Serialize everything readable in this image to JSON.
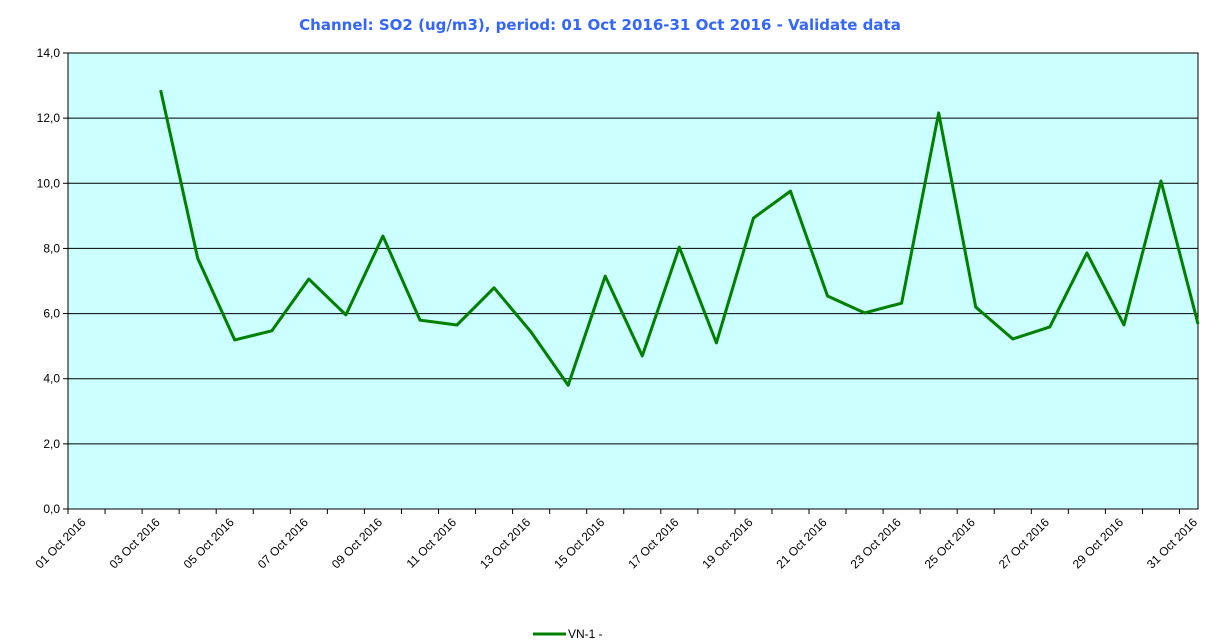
{
  "chart_data": {
    "type": "line",
    "title": "Channel: SO2 (ug/m3), period: 01 Oct 2016-31 Oct 2016 - Validate data",
    "categories": [
      "01 Oct 2016",
      null,
      "03 Oct 2016",
      null,
      "05 Oct 2016",
      null,
      "07 Oct 2016",
      null,
      "09 Oct 2016",
      null,
      "11 Oct 2016",
      null,
      "13 Oct 2016",
      null,
      "15 Oct 2016",
      null,
      "17 Oct 2016",
      null,
      "19 Oct 2016",
      null,
      "21 Oct 2016",
      null,
      "23 Oct 2016",
      null,
      "25 Oct 2016",
      null,
      "27 Oct 2016",
      null,
      "29 Oct 2016",
      null,
      "31 Oct 2016"
    ],
    "series": [
      {
        "name": "VN-1 -",
        "color": "#008000",
        "values": [
          null,
          null,
          12.86,
          7.7,
          5.19,
          5.47,
          7.06,
          5.96,
          8.38,
          5.8,
          5.65,
          6.79,
          5.43,
          3.8,
          7.15,
          4.7,
          8.04,
          5.1,
          8.93,
          9.76,
          6.54,
          6.02,
          6.32,
          12.16,
          6.2,
          5.22,
          5.59,
          7.86,
          5.65,
          10.07,
          5.68
        ]
      }
    ],
    "ylim": [
      0,
      14
    ],
    "yticks": [
      {
        "value": 0,
        "label": "0,0"
      },
      {
        "value": 2,
        "label": "2,0"
      },
      {
        "value": 4,
        "label": "4,0"
      },
      {
        "value": 6,
        "label": "6,0"
      },
      {
        "value": 8,
        "label": "8,0"
      },
      {
        "value": 10,
        "label": "10,0"
      },
      {
        "value": 12,
        "label": "12,0"
      },
      {
        "value": 14,
        "label": "14,0"
      }
    ],
    "grid": true,
    "background": "#ccffff",
    "legend": "bottom"
  }
}
